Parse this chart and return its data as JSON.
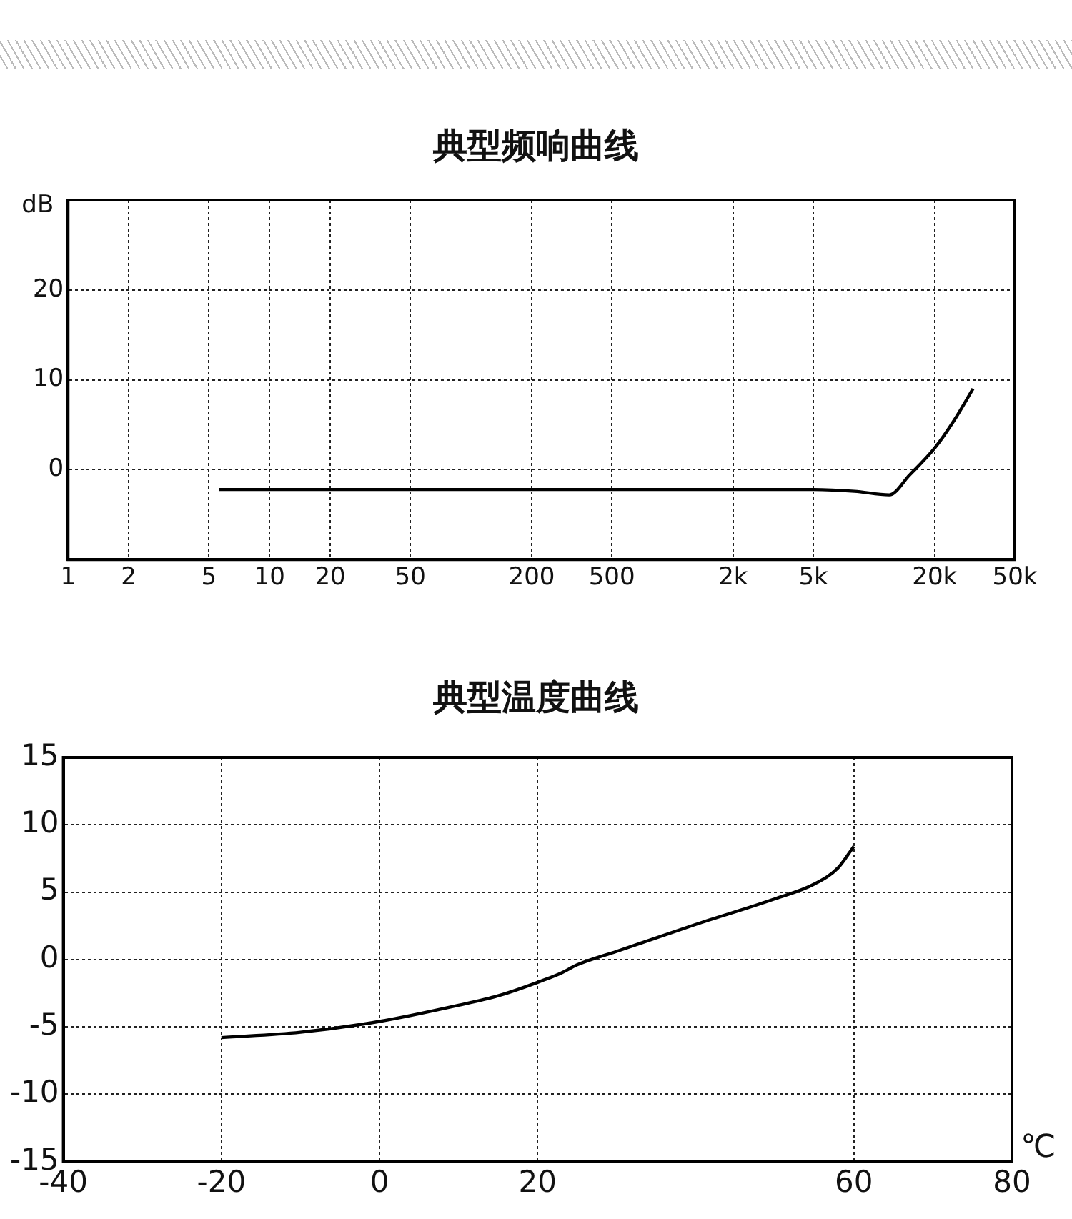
{
  "chart_data": [
    {
      "type": "line",
      "title": "典型频响曲线",
      "ylabel": "dB",
      "log": "x",
      "xlim": [
        1,
        50000
      ],
      "xticks": [
        1,
        2,
        5,
        10,
        20,
        50,
        200,
        500,
        {
          "value": 2000,
          "label": "2k"
        },
        {
          "value": 5000,
          "label": "5k"
        },
        {
          "value": 20000,
          "label": "20k"
        },
        {
          "value": 50000,
          "label": "50k"
        }
      ],
      "ylim": [
        -10,
        30
      ],
      "yticks": [
        0,
        10,
        20
      ],
      "grid": true,
      "marker": "none",
      "series": [
        {
          "color": "#000000",
          "x": [
            5.6,
            100,
            1000,
            5000,
            8000,
            11900,
            15000,
            20000,
            25000,
            31000
          ],
          "values": [
            -2.2,
            -2.2,
            -2.2,
            -2.2,
            -2.4,
            -2.8,
            -0.6,
            2.4,
            5.5,
            9
          ]
        }
      ]
    },
    {
      "type": "line",
      "title": "典型温度曲线",
      "xlabel": "℃",
      "xlim": [
        -40,
        80
      ],
      "xticks": [
        -40,
        -20,
        0,
        20,
        60,
        80
      ],
      "ylim": [
        -15,
        15
      ],
      "yticks": [
        15,
        10,
        5,
        0,
        -5,
        -10,
        -15
      ],
      "grid": true,
      "marker": "none",
      "series": [
        {
          "color": "#000000",
          "x": [
            -20,
            -10,
            0,
            10,
            15,
            20,
            23,
            25,
            30,
            40,
            50,
            55,
            58,
            60
          ],
          "values": [
            -5.8,
            -5.4,
            -4.6,
            -3.4,
            -2.7,
            -1.7,
            -1,
            -0.4,
            0.6,
            2.6,
            4.5,
            5.6,
            6.8,
            8.4
          ]
        }
      ]
    }
  ]
}
